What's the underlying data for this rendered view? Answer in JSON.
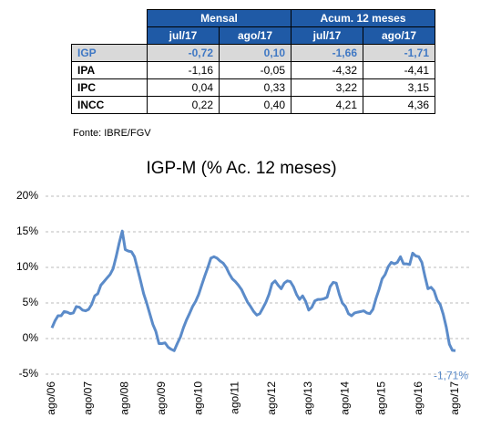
{
  "table": {
    "group_headers": [
      "Mensal",
      "Acum. 12 meses"
    ],
    "columns": [
      "jul/17",
      "ago/17",
      "jul/17",
      "ago/17"
    ],
    "rows": [
      [
        "IGP",
        "-0,72",
        "0,10",
        "-1,66",
        "-1,71"
      ],
      [
        "IPA",
        "-1,16",
        "-0,05",
        "-4,32",
        "-4,41"
      ],
      [
        "IPC",
        "0,04",
        "0,33",
        "3,22",
        "3,15"
      ],
      [
        "INCC",
        "0,22",
        "0,40",
        "4,21",
        "4,36"
      ]
    ],
    "source": "Fonte: IBRE/FGV"
  },
  "chart_data": {
    "type": "line",
    "title": "IGP-M (% Ac. 12 meses)",
    "categories": [
      "ago/06",
      null,
      null,
      null,
      null,
      null,
      null,
      null,
      null,
      null,
      null,
      null,
      "ago/07",
      null,
      null,
      null,
      null,
      null,
      null,
      null,
      null,
      null,
      null,
      null,
      "ago/08",
      null,
      null,
      null,
      null,
      null,
      null,
      null,
      null,
      null,
      null,
      null,
      "ago/09",
      null,
      null,
      null,
      null,
      null,
      null,
      null,
      null,
      null,
      null,
      null,
      "ago/10",
      null,
      null,
      null,
      null,
      null,
      null,
      null,
      null,
      null,
      null,
      null,
      "ago/11",
      null,
      null,
      null,
      null,
      null,
      null,
      null,
      null,
      null,
      null,
      null,
      "ago/12",
      null,
      null,
      null,
      null,
      null,
      null,
      null,
      null,
      null,
      null,
      null,
      "ago/13",
      null,
      null,
      null,
      null,
      null,
      null,
      null,
      null,
      null,
      null,
      null,
      "ago/14",
      null,
      null,
      null,
      null,
      null,
      null,
      null,
      null,
      null,
      null,
      null,
      "ago/15",
      null,
      null,
      null,
      null,
      null,
      null,
      null,
      null,
      null,
      null,
      null,
      "ago/16",
      null,
      null,
      null,
      null,
      null,
      null,
      null,
      null,
      null,
      null,
      null,
      "ago/17"
    ],
    "series": [
      {
        "name": "IGP-M",
        "color": "#5b8bc9",
        "values": [
          1.5,
          2.5,
          3.2,
          3.2,
          3.8,
          3.7,
          3.5,
          3.6,
          4.5,
          4.4,
          4.0,
          3.9,
          4.1,
          4.8,
          6.0,
          6.3,
          7.5,
          8.0,
          8.5,
          9.0,
          9.8,
          11.5,
          13.4,
          15.1,
          12.5,
          12.3,
          12.2,
          11.5,
          9.8,
          8.1,
          6.3,
          5.0,
          3.5,
          2.0,
          1.0,
          -0.7,
          -0.7,
          -0.6,
          -1.2,
          -1.5,
          -1.7,
          -0.7,
          0.2,
          1.5,
          2.6,
          3.5,
          4.5,
          5.2,
          6.2,
          7.5,
          8.8,
          10.0,
          11.3,
          11.5,
          11.3,
          10.9,
          10.6,
          10.0,
          9.1,
          8.4,
          8.0,
          7.5,
          6.9,
          6.0,
          5.1,
          4.5,
          3.8,
          3.3,
          3.5,
          4.3,
          5.1,
          6.2,
          7.7,
          8.1,
          7.5,
          7.0,
          7.8,
          8.1,
          8.0,
          7.3,
          6.2,
          5.5,
          6.0,
          5.2,
          4.0,
          4.4,
          5.3,
          5.5,
          5.5,
          5.6,
          5.8,
          7.3,
          7.9,
          7.8,
          6.2,
          5.0,
          4.5,
          3.5,
          3.2,
          3.6,
          3.7,
          3.8,
          3.9,
          3.6,
          3.5,
          4.1,
          5.6,
          6.9,
          8.4,
          9.0,
          10.1,
          10.7,
          10.5,
          10.7,
          11.5,
          10.5,
          10.5,
          10.4,
          12.0,
          11.6,
          11.5,
          10.7,
          8.8,
          7.0,
          7.2,
          6.7,
          5.4,
          4.8,
          3.4,
          1.6,
          -0.8,
          -1.66,
          -1.71
        ],
        "value_labels": [
          null,
          null,
          null,
          null,
          null,
          null,
          null,
          null,
          null,
          null,
          null,
          null,
          null,
          null,
          null,
          null,
          null,
          null,
          null,
          null,
          null,
          null,
          null,
          null,
          null,
          null,
          null,
          null,
          null,
          null,
          null,
          null,
          null,
          null,
          null,
          null,
          null,
          null,
          null,
          null,
          null,
          null,
          null,
          null,
          null,
          null,
          null,
          null,
          null,
          null,
          null,
          null,
          null,
          null,
          null,
          null,
          null,
          null,
          null,
          null,
          null,
          null,
          null,
          null,
          null,
          null,
          null,
          null,
          null,
          null,
          null,
          null,
          null,
          null,
          null,
          null,
          null,
          null,
          null,
          null,
          null,
          null,
          null,
          null,
          null,
          null,
          null,
          null,
          null,
          null,
          null,
          null,
          null,
          null,
          null,
          null,
          null,
          null,
          null,
          null,
          null,
          null,
          null,
          null,
          null,
          null,
          null,
          null,
          null,
          null,
          null,
          null,
          null,
          null,
          null,
          null,
          null,
          null,
          null,
          null,
          null,
          null,
          null,
          null,
          null,
          null,
          null,
          null,
          null,
          null,
          null,
          null,
          "-1,71%"
        ]
      }
    ],
    "ylim": [
      -5,
      20
    ],
    "yticks": [
      {
        "value": -5,
        "label": "-5%"
      },
      {
        "value": 0,
        "label": "0%"
      },
      {
        "value": 5,
        "label": "5%"
      },
      {
        "value": 10,
        "label": "10%"
      },
      {
        "value": 15,
        "label": "15%"
      },
      {
        "value": 20,
        "label": "20%"
      }
    ],
    "grid": true
  }
}
